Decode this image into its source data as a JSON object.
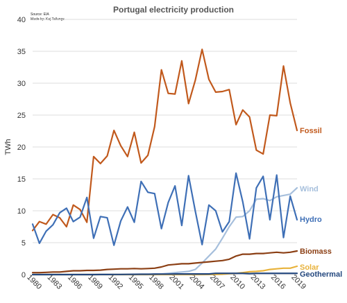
{
  "chart_data": {
    "type": "line",
    "title": "Portugal electricity production",
    "source_lines": [
      "Source: EIA",
      "Made by: Kaj Tallungs"
    ],
    "ylabel": "TWh",
    "xlabel": "",
    "ylim": [
      0,
      40
    ],
    "yticks": [
      0,
      5,
      10,
      15,
      20,
      25,
      30,
      35,
      40
    ],
    "xlim": [
      1980,
      2019
    ],
    "xticks": [
      1980,
      1983,
      1986,
      1989,
      1992,
      1995,
      1998,
      2001,
      2004,
      2007,
      2010,
      2013,
      2016,
      2019
    ],
    "grid": "horizontal",
    "legend": "inline labels at line ends (right)",
    "x": [
      1980,
      1981,
      1982,
      1983,
      1984,
      1985,
      1986,
      1987,
      1988,
      1989,
      1990,
      1991,
      1992,
      1993,
      1994,
      1995,
      1996,
      1997,
      1998,
      1999,
      2000,
      2001,
      2002,
      2003,
      2004,
      2005,
      2006,
      2007,
      2008,
      2009,
      2010,
      2011,
      2012,
      2013,
      2014,
      2015,
      2016,
      2017,
      2018,
      2019
    ],
    "series": [
      {
        "name": "Fossil",
        "color": "#c1591c",
        "values": [
          6.9,
          8.3,
          7.9,
          9.4,
          8.9,
          7.5,
          10.9,
          10.2,
          8.2,
          18.5,
          17.4,
          18.6,
          22.6,
          20.2,
          18.5,
          22.3,
          17.5,
          18.7,
          23.2,
          32.1,
          28.4,
          28.3,
          33.5,
          26.8,
          30.5,
          35.3,
          30.6,
          28.6,
          28.7,
          29.0,
          23.5,
          25.8,
          24.7,
          19.5,
          18.9,
          25.0,
          24.9,
          32.7,
          26.9,
          22.6
        ]
      },
      {
        "name": "Wind",
        "color": "#a6bfdc",
        "values": [
          0,
          0,
          0,
          0,
          0,
          0,
          0,
          0,
          0,
          0,
          0,
          0,
          0,
          0,
          0,
          0,
          0,
          0,
          0.1,
          0.1,
          0.2,
          0.3,
          0.4,
          0.5,
          0.8,
          1.8,
          2.9,
          4.0,
          5.7,
          7.5,
          9.0,
          9.1,
          10.0,
          11.8,
          11.9,
          11.6,
          12.2,
          12.4,
          12.6,
          13.6
        ]
      },
      {
        "name": "Hydro",
        "color": "#3e6fb6",
        "values": [
          7.9,
          4.9,
          6.8,
          7.8,
          9.7,
          10.4,
          8.3,
          9.0,
          12.1,
          5.7,
          9.1,
          8.9,
          4.6,
          8.4,
          10.6,
          8.2,
          14.6,
          12.9,
          12.7,
          7.2,
          11.3,
          13.9,
          7.7,
          15.5,
          9.9,
          4.7,
          10.9,
          10.0,
          6.7,
          8.3,
          15.9,
          11.4,
          5.6,
          13.6,
          15.4,
          8.6,
          15.6,
          5.8,
          12.3,
          8.6
        ]
      },
      {
        "name": "Biomass",
        "color": "#8b3f14",
        "values": [
          0.3,
          0.3,
          0.35,
          0.4,
          0.4,
          0.5,
          0.6,
          0.6,
          0.65,
          0.65,
          0.7,
          0.8,
          0.85,
          0.9,
          0.9,
          0.95,
          0.9,
          0.95,
          1.0,
          1.2,
          1.5,
          1.6,
          1.7,
          1.7,
          1.8,
          1.9,
          2.0,
          2.1,
          2.2,
          2.4,
          2.9,
          3.2,
          3.2,
          3.3,
          3.3,
          3.4,
          3.5,
          3.4,
          3.5,
          3.7
        ]
      },
      {
        "name": "Solar",
        "color": "#e8b23a",
        "values": [
          0,
          0,
          0,
          0,
          0,
          0,
          0,
          0,
          0,
          0,
          0,
          0,
          0,
          0,
          0,
          0,
          0,
          0,
          0,
          0,
          0,
          0,
          0,
          0,
          0,
          0,
          0.01,
          0.02,
          0.05,
          0.15,
          0.2,
          0.3,
          0.45,
          0.5,
          0.6,
          0.8,
          0.9,
          1.0,
          1.0,
          1.3
        ]
      },
      {
        "name": "Geothermal",
        "color": "#23477e",
        "values": [
          0,
          0,
          0,
          0,
          0,
          0,
          0,
          0,
          0,
          0,
          0.01,
          0.01,
          0.02,
          0.02,
          0.03,
          0.04,
          0.05,
          0.05,
          0.06,
          0.08,
          0.08,
          0.1,
          0.1,
          0.1,
          0.1,
          0.1,
          0.1,
          0.2,
          0.2,
          0.2,
          0.2,
          0.2,
          0.15,
          0.2,
          0.2,
          0.2,
          0.2,
          0.2,
          0.2,
          0.2
        ]
      }
    ]
  }
}
